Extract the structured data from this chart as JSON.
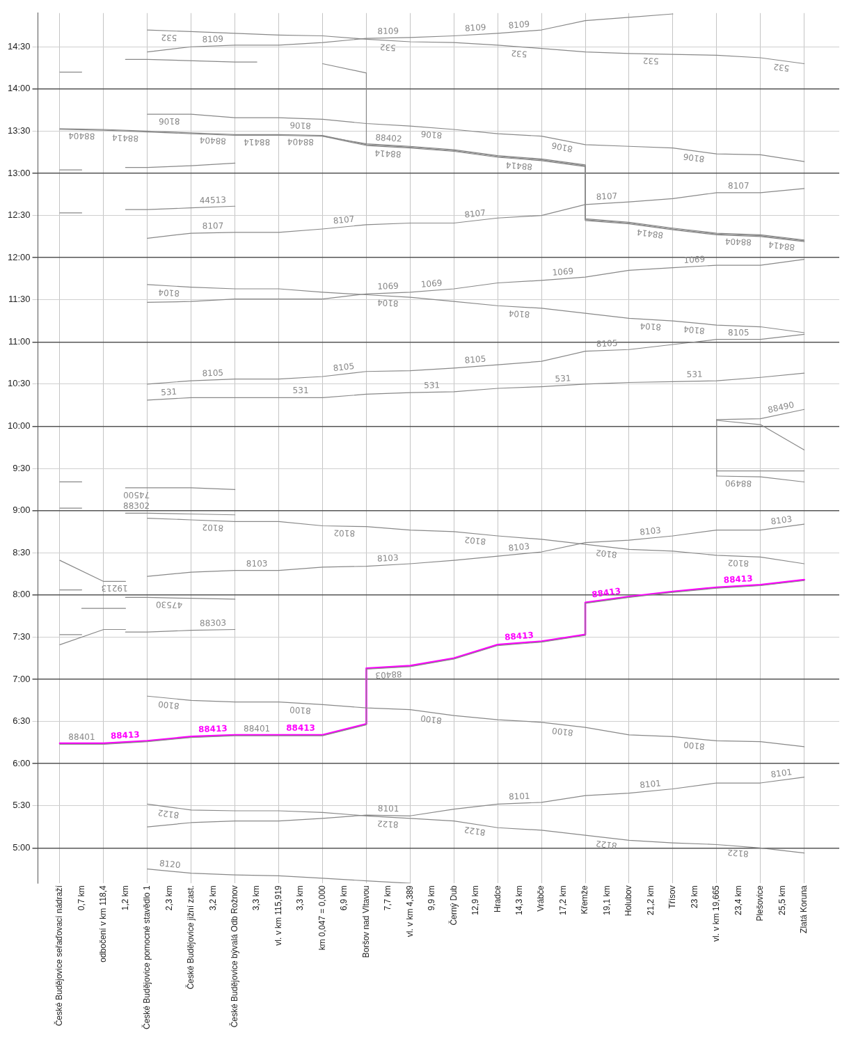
{
  "chart_data": {
    "type": "line",
    "marker": "none",
    "grid": true,
    "ylim": [
      4.58,
      14.9
    ],
    "categories": [
      "České Budějovice seřaďovací nádraží",
      "0,7 km",
      "odbočení v km 118,4",
      "1,2 km",
      "České Budějovice pomocné stavědlo 1",
      "2,3 km",
      "České Budějovice jižní zast.",
      "3,2 km",
      "České Budějovice bývalá Odb Rožnov",
      "3,3 km",
      "vl. v km 115,919",
      "3,3 km",
      "km 0,047 = 0,000",
      "6,9 km",
      "Boršov nad Vltavou",
      "7,7 km",
      "vl. v km 4,389",
      "9,9 km",
      "Černý Dub",
      "12,9 km",
      "Hradce",
      "14,3 km",
      "Vrábče",
      "17,2 km",
      "Křemže",
      "19,1 km",
      "Holubov",
      "21,2 km",
      "Třísov",
      "23 km",
      "vl. v km 19,665",
      "23,4 km",
      "Plešovice",
      "25,5 km",
      "Zlatá Koruna"
    ],
    "yticks": [
      {
        "value": 5,
        "label": "5:00"
      },
      {
        "value": 5.5,
        "label": "5:30"
      },
      {
        "value": 6,
        "label": "6:00"
      },
      {
        "value": 6.5,
        "label": "6:30"
      },
      {
        "value": 7,
        "label": "7:00"
      },
      {
        "value": 7.5,
        "label": "7:30"
      },
      {
        "value": 8,
        "label": "8:00"
      },
      {
        "value": 8.5,
        "label": "8:30"
      },
      {
        "value": 9,
        "label": "9:00"
      },
      {
        "value": 9.5,
        "label": "9:30"
      },
      {
        "value": 10,
        "label": "10:00"
      },
      {
        "value": 10.5,
        "label": "10:30"
      },
      {
        "value": 11,
        "label": "11:00"
      },
      {
        "value": 11.5,
        "label": "11:30"
      },
      {
        "value": 12,
        "label": "12:00"
      },
      {
        "value": 12.5,
        "label": "12:30"
      },
      {
        "value": 13,
        "label": "13:00"
      },
      {
        "value": 13.5,
        "label": "13:30"
      },
      {
        "value": 14,
        "label": "14:00"
      },
      {
        "value": 14.5,
        "label": "14:30"
      }
    ],
    "series": [
      {
        "name": "8120",
        "color": "#888888",
        "x": [
          "České Budějovice pomocné stavědlo 1",
          "České Budějovice jižní zast.",
          "České Budějovice bývalá Odb Rožnov",
          "vl. v km 115,919",
          "km 0,047 = 0,000",
          "Boršov nad Vltavou",
          "vl. v km 4,389"
        ],
        "values": [
          4.75,
          4.7,
          4.68,
          4.67,
          4.64,
          4.61,
          4.58
        ]
      },
      {
        "name": "8122",
        "color": "#888888",
        "x": [
          "České Budějovice pomocné stavědlo 1",
          "České Budějovice jižní zast.",
          "České Budějovice bývalá Odb Rožnov",
          "vl. v km 115,919",
          "km 0,047 = 0,000",
          "Boršov nad Vltavou",
          "vl. v km 4,389",
          "Černý Dub",
          "Hradce",
          "Vrábče",
          "Křemže",
          "Holubov",
          "Třísov",
          "vl. v km 19,665",
          "Plešovice",
          "Zlatá Koruna"
        ],
        "values": [
          5.52,
          5.45,
          5.44,
          5.44,
          5.42,
          5.38,
          5.35,
          5.32,
          5.24,
          5.21,
          5.15,
          5.09,
          5.06,
          5.04,
          5.0,
          4.94
        ]
      },
      {
        "name": "8101",
        "color": "#888888",
        "x": [
          "České Budějovice pomocné stavědlo 1",
          "České Budějovice jižní zast.",
          "České Budějovice bývalá Odb Rožnov",
          "vl. v km 115,919",
          "km 0,047 = 0,000",
          "Boršov nad Vltavou",
          "vl. v km 4,389",
          "Černý Dub",
          "Hradce",
          "Vrábče",
          "Křemže",
          "Holubov",
          "Třísov",
          "vl. v km 19,665",
          "Plešovice",
          "Zlatá Koruna"
        ],
        "values": [
          5.25,
          5.3,
          5.32,
          5.32,
          5.35,
          5.39,
          5.38,
          5.46,
          5.52,
          5.54,
          5.62,
          5.65,
          5.7,
          5.77,
          5.77,
          5.84
        ]
      },
      {
        "name": "8100",
        "color": "#888888",
        "x": [
          "České Budějovice pomocné stavědlo 1",
          "České Budějovice jižní zast.",
          "České Budějovice bývalá Odb Rožnov",
          "vl. v km 115,919",
          "km 0,047 = 0,000",
          "Boršov nad Vltavou",
          "vl. v km 4,389",
          "Černý Dub",
          "Hradce",
          "Vrábče",
          "Křemže",
          "Holubov",
          "Třísov",
          "vl. v km 19,665",
          "Plešovice",
          "Zlatá Koruna"
        ],
        "values": [
          6.8,
          6.75,
          6.73,
          6.73,
          6.7,
          6.66,
          6.64,
          6.57,
          6.52,
          6.49,
          6.43,
          6.34,
          6.32,
          6.27,
          6.26,
          6.2
        ]
      },
      {
        "name": "88401",
        "color": "#888888",
        "x": [
          "České Budějovice seřaďovací nádraží",
          "odbočení v km 118,4",
          "České Budějovice pomocné stavědlo 1",
          "České Budějovice jižní zast.",
          "České Budějovice bývalá Odb Rožnov",
          "vl. v km 115,919",
          "km 0,047 = 0,000",
          "Boršov nad Vltavou"
        ],
        "values": [
          6.23,
          6.23,
          6.26,
          6.31,
          6.33,
          6.33,
          6.33,
          6.46
        ]
      },
      {
        "name": "88403",
        "color": "#888888",
        "x": [
          "Boršov nad Vltavou",
          "Boršov nad Vltavou",
          "vl. v km 4,389",
          "Černý Dub",
          "Hradce",
          "Vrábče",
          "Křemže",
          "Křemže",
          "Holubov",
          "Třísov",
          "vl. v km 19,665",
          "Plešovice",
          "Zlatá Koruna"
        ],
        "values": [
          6.46,
          7.12,
          7.15,
          7.24,
          7.4,
          7.44,
          7.52,
          7.9,
          7.97,
          8.03,
          8.08,
          8.11,
          8.17
        ]
      },
      {
        "name": "88413",
        "color": "#ff00ff",
        "x": [
          "České Budějovice seřaďovací nádraží",
          "odbočení v km 118,4",
          "České Budějovice pomocné stavědlo 1",
          "České Budějovice jižní zast.",
          "České Budějovice bývalá Odb Rožnov",
          "vl. v km 115,919",
          "km 0,047 = 0,000",
          "Boršov nad Vltavou",
          "Boršov nad Vltavou",
          "vl. v km 4,389",
          "Černý Dub",
          "Hradce",
          "Vrábče",
          "Křemže",
          "Křemže",
          "Holubov",
          "Třísov",
          "vl. v km 19,665",
          "Plešovice",
          "Zlatá Koruna"
        ],
        "values": [
          6.24,
          6.24,
          6.27,
          6.32,
          6.34,
          6.34,
          6.34,
          6.47,
          7.13,
          7.16,
          7.25,
          7.41,
          7.45,
          7.53,
          7.91,
          7.98,
          8.04,
          8.09,
          8.12,
          8.18
        ]
      },
      {
        "name": "19213",
        "color": "#888888",
        "x": [
          "České Budějovice seřaďovací nádraží",
          "odbočení v km 118,4",
          "1,2 km"
        ],
        "values": [
          8.41,
          8.16,
          8.16
        ]
      },
      {
        "color": "#888888",
        "x": [
          "České Budějovice seřaďovací nádraží",
          "odbočení v km 118,4",
          "1,2 km"
        ],
        "values": [
          7.41,
          7.59,
          7.59
        ]
      },
      {
        "color": "#888888",
        "x": [
          "0,7 km",
          "1,2 km"
        ],
        "values": [
          7.84,
          7.84
        ]
      },
      {
        "name": "47530",
        "color": "#888888",
        "x": [
          "1,2 km",
          "České Budějovice pomocné stavědlo 1",
          "České Budějovice jižní zast.",
          "České Budějovice bývalá Odb Rožnov"
        ],
        "values": [
          7.97,
          7.97,
          7.96,
          7.95
        ]
      },
      {
        "name": "88303",
        "color": "#888888",
        "x": [
          "1,2 km",
          "České Budějovice pomocné stavědlo 1",
          "České Budějovice jižní zast.",
          "České Budějovice bývalá Odb Rožnov"
        ],
        "values": [
          7.56,
          7.56,
          7.58,
          7.59
        ]
      },
      {
        "name": "88302",
        "color": "#888888",
        "x": [
          "1,2 km",
          "České Budějovice pomocné stavědlo 1",
          "České Budějovice jižní zast.",
          "České Budějovice bývalá Odb Rožnov"
        ],
        "values": [
          8.97,
          8.97,
          8.96,
          8.95
        ]
      },
      {
        "name": "8102",
        "color": "#888888",
        "x": [
          "České Budějovice pomocné stavědlo 1",
          "České Budějovice jižní zast.",
          "České Budějovice bývalá Odb Rožnov",
          "vl. v km 115,919",
          "km 0,047 = 0,000",
          "Boršov nad Vltavou",
          "vl. v km 4,389",
          "Černý Dub",
          "Hradce",
          "Vrábče",
          "Křemže",
          "Holubov",
          "Třísov",
          "vl. v km 19,665",
          "Plešovice",
          "Zlatá Koruna"
        ],
        "values": [
          8.91,
          8.89,
          8.87,
          8.87,
          8.82,
          8.81,
          8.77,
          8.75,
          8.7,
          8.66,
          8.6,
          8.54,
          8.52,
          8.47,
          8.45,
          8.37
        ]
      },
      {
        "name": "8103",
        "color": "#888888",
        "x": [
          "České Budějovice pomocné stavědlo 1",
          "České Budějovice jižní zast.",
          "České Budějovice bývalá Odb Rožnov",
          "vl. v km 115,919",
          "km 0,047 = 0,000",
          "Boršov nad Vltavou",
          "vl. v km 4,389",
          "Černý Dub",
          "Hradce",
          "Vrábče",
          "Křemže",
          "Holubov",
          "Třísov",
          "vl. v km 19,665",
          "Plešovice",
          "Zlatá Koruna"
        ],
        "values": [
          8.22,
          8.27,
          8.29,
          8.29,
          8.33,
          8.34,
          8.37,
          8.41,
          8.46,
          8.51,
          8.62,
          8.65,
          8.7,
          8.77,
          8.77,
          8.84
        ]
      },
      {
        "name": "74500",
        "color": "#888888",
        "x": [
          "1,2 km",
          "České Budějovice pomocné stavědlo 1",
          "České Budějovice jižní zast.",
          "České Budějovice bývalá Odb Rožnov"
        ],
        "values": [
          9.27,
          9.27,
          9.27,
          9.25
        ]
      },
      {
        "name": "88490",
        "color": "#888888",
        "x": [
          "vl. v km 19,665",
          "Plešovice",
          "Zlatá Koruna"
        ],
        "values": [
          10.08,
          10.09,
          10.2
        ]
      },
      {
        "name": "88490",
        "color": "#888888",
        "x": [
          "vl. v km 19,665",
          "Plešovice",
          "Zlatá Koruna"
        ],
        "values": [
          9.41,
          9.4,
          9.34
        ]
      },
      {
        "color": "#888888",
        "x": [
          "vl. v km 19,665",
          "vl. v km 19,665"
        ],
        "values": [
          10.08,
          9.41
        ]
      },
      {
        "color": "#888888",
        "x": [
          "vl. v km 19,665",
          "Plešovice",
          "Zlatá Koruna"
        ],
        "values": [
          10.07,
          10.02,
          9.72
        ]
      },
      {
        "color": "#888888",
        "x": [
          "vl. v km 19,665",
          "Plešovice",
          "Zlatá Koruna"
        ],
        "values": [
          9.47,
          9.47,
          9.47
        ]
      },
      {
        "name": "531",
        "color": "#888888",
        "x": [
          "České Budějovice pomocné stavědlo 1",
          "České Budějovice jižní zast.",
          "České Budějovice bývalá Odb Rožnov",
          "vl. v km 115,919",
          "km 0,047 = 0,000",
          "Boršov nad Vltavou",
          "vl. v km 4,389",
          "Černý Dub",
          "Hradce",
          "Vrábče",
          "Křemže",
          "Holubov",
          "Třísov",
          "vl. v km 19,665",
          "Plešovice",
          "Zlatá Koruna"
        ],
        "values": [
          10.31,
          10.34,
          10.34,
          10.34,
          10.34,
          10.38,
          10.4,
          10.41,
          10.45,
          10.47,
          10.5,
          10.52,
          10.53,
          10.54,
          10.58,
          10.63
        ]
      },
      {
        "name": "8105",
        "color": "#888888",
        "x": [
          "České Budějovice pomocné stavědlo 1",
          "České Budějovice jižní zast.",
          "České Budějovice bývalá Odb Rožnov",
          "vl. v km 115,919",
          "km 0,047 = 0,000",
          "Boršov nad Vltavou",
          "vl. v km 4,389",
          "Černý Dub",
          "Hradce",
          "Vrábče",
          "Křemže",
          "Holubov",
          "Třísov",
          "vl. v km 19,665",
          "Plešovice",
          "Zlatá Koruna"
        ],
        "values": [
          10.5,
          10.54,
          10.56,
          10.56,
          10.59,
          10.65,
          10.66,
          10.69,
          10.73,
          10.77,
          10.89,
          10.91,
          10.97,
          11.03,
          11.03,
          11.09
        ]
      },
      {
        "name": "8104",
        "color": "#888888",
        "x": [
          "České Budějovice pomocné stavědlo 1",
          "České Budějovice jižní zast.",
          "České Budějovice bývalá Odb Rožnov",
          "vl. v km 115,919",
          "km 0,047 = 0,000",
          "Boršov nad Vltavou",
          "vl. v km 4,389",
          "Černý Dub",
          "Hradce",
          "Vrábče",
          "Křemže",
          "Holubov",
          "Třísov",
          "vl. v km 19,665",
          "Plešovice",
          "Zlatá Koruna"
        ],
        "values": [
          11.68,
          11.65,
          11.63,
          11.63,
          11.59,
          11.56,
          11.53,
          11.48,
          11.43,
          11.4,
          11.34,
          11.28,
          11.25,
          11.2,
          11.18,
          11.11
        ]
      },
      {
        "name": "1069",
        "color": "#888888",
        "x": [
          "České Budějovice pomocné stavědlo 1",
          "České Budějovice jižní zast.",
          "České Budějovice bývalá Odb Rožnov",
          "vl. v km 115,919",
          "km 0,047 = 0,000",
          "Boršov nad Vltavou",
          "vl. v km 4,389",
          "Černý Dub",
          "Hradce",
          "Vrábče",
          "Křemže",
          "Holubov",
          "Třísov",
          "vl. v km 19,665",
          "Plešovice",
          "Zlatá Koruna"
        ],
        "values": [
          11.47,
          11.48,
          11.51,
          11.51,
          11.51,
          11.57,
          11.59,
          11.63,
          11.7,
          11.73,
          11.77,
          11.85,
          11.88,
          11.91,
          11.91,
          11.98
        ]
      },
      {
        "name": "8107",
        "color": "#888888",
        "x": [
          "České Budějovice pomocné stavědlo 1",
          "České Budějovice jižní zast.",
          "České Budějovice bývalá Odb Rožnov",
          "vl. v km 115,919",
          "km 0,047 = 0,000",
          "Boršov nad Vltavou",
          "vl. v km 4,389",
          "Černý Dub",
          "Hradce",
          "Vrábče",
          "Křemže",
          "Holubov",
          "Třísov",
          "vl. v km 19,665",
          "Plešovice",
          "Zlatá Koruna"
        ],
        "values": [
          12.23,
          12.29,
          12.3,
          12.3,
          12.34,
          12.39,
          12.41,
          12.41,
          12.47,
          12.5,
          12.63,
          12.66,
          12.7,
          12.77,
          12.77,
          12.82
        ]
      },
      {
        "name": "44513",
        "color": "#888888",
        "x": [
          "1,2 km",
          "České Budějovice pomocné stavědlo 1",
          "České Budějovice jižní zast.",
          "České Budějovice bývalá Odb Rožnov"
        ],
        "values": [
          12.57,
          12.57,
          12.59,
          12.61
        ]
      },
      {
        "name": "88404",
        "color": "#888888",
        "x": [
          "České Budějovice seřaďovací nádraží",
          "odbočení v km 118,4",
          "České Budějovice pomocné stavědlo 1",
          "České Budějovice jižní zast.",
          "České Budějovice bývalá Odb Rožnov",
          "vl. v km 115,919",
          "km 0,047 = 0,000",
          "Boršov nad Vltavou",
          "vl. v km 4,389",
          "Černý Dub",
          "Hradce",
          "Vrábče",
          "Křemže",
          "Křemže",
          "Holubov",
          "Třísov",
          "vl. v km 19,665",
          "Plešovice",
          "Zlatá Koruna"
        ],
        "values": [
          13.53,
          13.52,
          13.5,
          13.48,
          13.46,
          13.46,
          13.45,
          13.34,
          13.31,
          13.27,
          13.2,
          13.16,
          13.09,
          12.45,
          12.41,
          12.34,
          12.28,
          12.26,
          12.2
        ]
      },
      {
        "name": "88414",
        "color": "#888888",
        "x": [
          "České Budějovice seřaďovací nádraží",
          "odbočení v km 118,4",
          "České Budějovice pomocné stavědlo 1",
          "České Budějovice jižní zast.",
          "České Budějovice bývalá Odb Rožnov",
          "vl. v km 115,919",
          "km 0,047 = 0,000",
          "Boršov nad Vltavou",
          "vl. v km 4,389",
          "Černý Dub",
          "Hradce",
          "Vrábče",
          "Křemže",
          "Křemže",
          "Holubov",
          "Třísov",
          "vl. v km 19,665",
          "Plešovice",
          "Zlatá Koruna"
        ],
        "values": [
          13.52,
          13.51,
          13.49,
          13.47,
          13.45,
          13.45,
          13.44,
          13.33,
          13.3,
          13.26,
          13.19,
          13.15,
          13.08,
          12.44,
          12.4,
          12.33,
          12.27,
          12.25,
          12.19
        ]
      },
      {
        "name": "88402",
        "color": "#888888",
        "x": [
          "km 0,047 = 0,000",
          "Boršov nad Vltavou",
          "vl. v km 4,389",
          "Černý Dub",
          "Hradce",
          "Vrábče",
          "Křemže",
          "Křemže",
          "Holubov",
          "Třísov",
          "vl. v km 19,665",
          "Plešovice",
          "Zlatá Koruna"
        ],
        "values": [
          13.44,
          13.35,
          13.32,
          13.28,
          13.21,
          13.17,
          13.1,
          12.46,
          12.42,
          12.35,
          12.29,
          12.27,
          12.21
        ]
      },
      {
        "name": "8106",
        "color": "#888888",
        "x": [
          "České Budějovice pomocné stavědlo 1",
          "České Budějovice jižní zast.",
          "České Budějovice bývalá Odb Rožnov",
          "vl. v km 115,919",
          "km 0,047 = 0,000",
          "Boršov nad Vltavou",
          "vl. v km 4,389",
          "Černý Dub",
          "Hradce",
          "Vrábče",
          "Křemže",
          "Holubov",
          "Třísov",
          "vl. v km 19,665",
          "Plešovice",
          "Zlatá Koruna"
        ],
        "values": [
          13.7,
          13.7,
          13.66,
          13.66,
          13.64,
          13.59,
          13.56,
          13.52,
          13.47,
          13.44,
          13.34,
          13.32,
          13.3,
          13.23,
          13.22,
          13.14
        ]
      },
      {
        "color": "#888888",
        "x": [
          "1,2 km",
          "České Budějovice pomocné stavědlo 1",
          "České Budějovice jižní zast.",
          "České Budějovice bývalá Odb Rožnov"
        ],
        "values": [
          13.07,
          13.07,
          13.09,
          13.12
        ]
      },
      {
        "color": "#888888",
        "x": [
          "1,2 km",
          "České Budějovice pomocné stavědlo 1",
          "České Budějovice bývalá Odb Rožnov",
          "3,3 km"
        ],
        "values": [
          14.35,
          14.35,
          14.32,
          14.32
        ]
      },
      {
        "color": "#888888",
        "x": [
          "km 0,047 = 0,000",
          "Boršov nad Vltavou",
          "Boršov nad Vltavou"
        ],
        "values": [
          14.3,
          14.19,
          13.34
        ]
      },
      {
        "name": "8109",
        "color": "#888888",
        "x": [
          "České Budějovice pomocné stavědlo 1",
          "České Budějovice jižní zast.",
          "České Budějovice bývalá Odb Rožnov",
          "vl. v km 115,919",
          "km 0,047 = 0,000",
          "Boršov nad Vltavou",
          "vl. v km 4,389",
          "Černý Dub",
          "Hradce",
          "Vrábče",
          "Křemže",
          "Holubov",
          "Třísov"
        ],
        "values": [
          14.44,
          14.5,
          14.52,
          14.52,
          14.55,
          14.6,
          14.61,
          14.63,
          14.66,
          14.7,
          14.81,
          14.85,
          14.89
        ]
      },
      {
        "name": "532",
        "color": "#888888",
        "x": [
          "České Budějovice pomocné stavědlo 1",
          "České Budějovice jižní zast.",
          "České Budějovice bývalá Odb Rožnov",
          "vl. v km 115,919",
          "km 0,047 = 0,000",
          "Boršov nad Vltavou",
          "vl. v km 4,389",
          "Černý Dub",
          "Hradce",
          "Vrábče",
          "Křemže",
          "Holubov",
          "Třísov",
          "vl. v km 19,665",
          "Plešovice",
          "Zlatá Koruna"
        ],
        "values": [
          14.7,
          14.68,
          14.66,
          14.64,
          14.63,
          14.59,
          14.56,
          14.55,
          14.52,
          14.48,
          14.44,
          14.42,
          14.41,
          14.4,
          14.37,
          14.3
        ]
      },
      {
        "color": "#888888",
        "x": [
          "České Budějovice seřaďovací nádraží",
          "0,7 km"
        ],
        "values": [
          14.2,
          14.2
        ]
      },
      {
        "color": "#888888",
        "x": [
          "České Budějovice seřaďovací nádraží",
          "0,7 km"
        ],
        "values": [
          13.04,
          13.04
        ]
      },
      {
        "color": "#888888",
        "x": [
          "České Budějovice seřaďovací nádraží",
          "0,7 km"
        ],
        "values": [
          12.53,
          12.53
        ]
      },
      {
        "color": "#888888",
        "x": [
          "České Budějovice seřaďovací nádraží",
          "0,7 km"
        ],
        "values": [
          9.34,
          9.34
        ]
      },
      {
        "color": "#888888",
        "x": [
          "České Budějovice seřaďovací nádraží",
          "0,7 km"
        ],
        "values": [
          9.03,
          9.03
        ]
      },
      {
        "color": "#888888",
        "x": [
          "České Budějovice seřaďovací nádraží",
          "0,7 km"
        ],
        "values": [
          8.06,
          8.06
        ]
      },
      {
        "color": "#888888",
        "x": [
          "České Budějovice seřaďovací nádraží",
          "0,7 km"
        ],
        "values": [
          7.53,
          7.53
        ]
      }
    ]
  }
}
